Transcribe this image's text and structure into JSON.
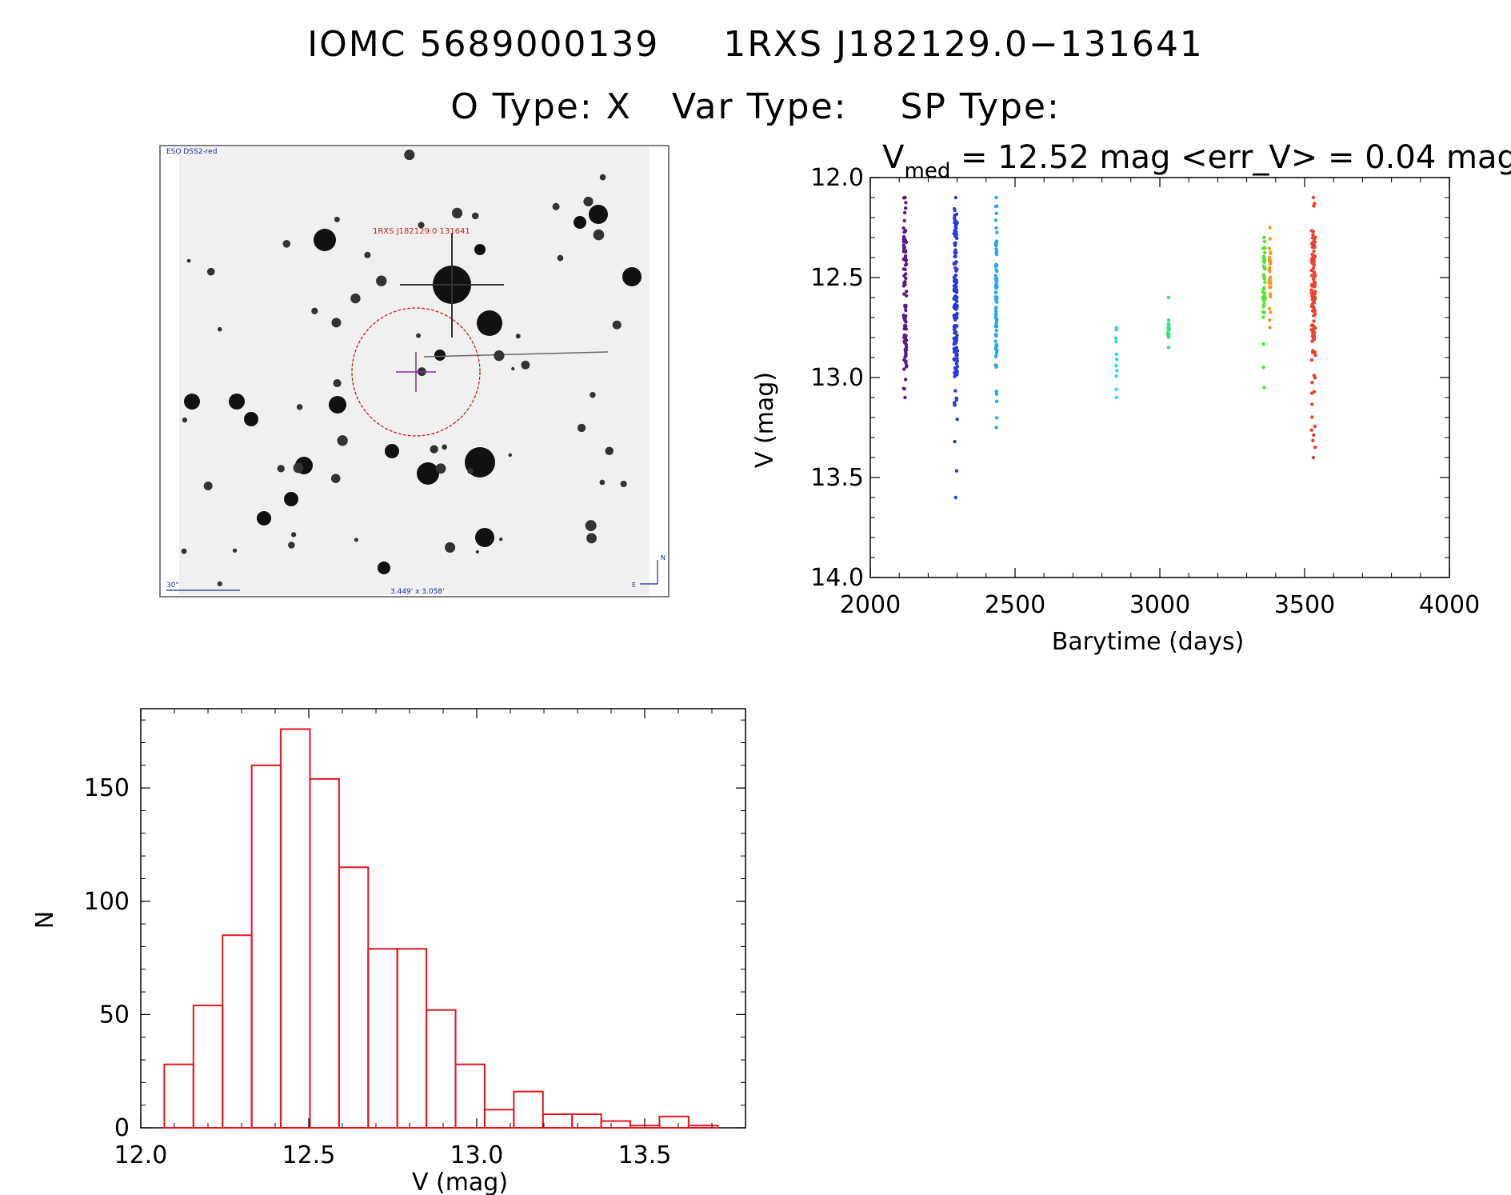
{
  "header": {
    "star_id": "IOMC 5689000139",
    "alt_id": "1RXS J182129.0−131641",
    "o_type_label": "O Type:",
    "o_type_value": "X",
    "var_type_label": "Var Type:",
    "var_type_value": "",
    "sp_type_label": "SP Type:",
    "sp_type_value": ""
  },
  "finder_chart": {
    "survey_label": "ESO DSS2-red",
    "target_label": "1RXS J182129.0 131641",
    "scale_label": "30\"",
    "fov_label": "3.449' x 3.058'",
    "north_label": "N",
    "east_label": "E",
    "colors": {
      "circle": "#c8202a",
      "crosshair": "#8a2a9a",
      "label": "#c8202a",
      "annot": "#1a2a9a"
    }
  },
  "chart_data": [
    {
      "type": "scatter",
      "title_prefix": "V",
      "title_subscript": "med",
      "title_rest": " = 12.52 mag <err_V> = 0.04 mag",
      "xlabel": "Barytime (days)",
      "ylabel": "V (mag)",
      "xlim": [
        2000,
        4000
      ],
      "ylim": [
        14.0,
        12.0
      ],
      "x_ticks": [
        2000,
        2500,
        3000,
        3500,
        4000
      ],
      "x_tick_labels": [
        "2000",
        "2500",
        "3000",
        "3500",
        "4000"
      ],
      "y_ticks": [
        12.0,
        12.5,
        13.0,
        13.5,
        14.0
      ],
      "y_tick_labels": [
        "12.0",
        "12.5",
        "13.0",
        "13.5",
        "14.0"
      ],
      "series": [
        {
          "name": "season1",
          "color": "#5a1a8a",
          "x_center": 2120,
          "x_spread": 10,
          "y_min": 12.1,
          "y_max": 13.1,
          "y_core": [
            12.25,
            12.95
          ],
          "count": 90
        },
        {
          "name": "season2",
          "color": "#2a3ad8",
          "x_center": 2295,
          "x_spread": 12,
          "y_min": 12.1,
          "y_max": 13.6,
          "y_core": [
            12.2,
            13.0
          ],
          "count": 150
        },
        {
          "name": "season3",
          "color": "#2aa8ea",
          "x_center": 2435,
          "x_spread": 5,
          "y_min": 12.1,
          "y_max": 13.25,
          "y_core": [
            12.3,
            12.9
          ],
          "count": 90
        },
        {
          "name": "season4",
          "color": "#2ad8e8",
          "x_center": 2850,
          "x_spread": 4,
          "y_min": 12.75,
          "y_max": 13.1,
          "y_core": [
            12.75,
            13.0
          ],
          "count": 10
        },
        {
          "name": "season5",
          "color": "#2ae87a",
          "x_center": 3030,
          "x_spread": 5,
          "y_min": 12.6,
          "y_max": 12.85,
          "y_core": [
            12.7,
            12.8
          ],
          "count": 12
        },
        {
          "name": "season6",
          "color": "#4ae82a",
          "x_center": 3360,
          "x_spread": 7,
          "y_min": 12.3,
          "y_max": 13.05,
          "y_core": [
            12.35,
            12.7
          ],
          "count": 40
        },
        {
          "name": "season7",
          "color": "#f0982a",
          "x_center": 3380,
          "x_spread": 5,
          "y_min": 12.25,
          "y_max": 12.75,
          "y_core": [
            12.35,
            12.6
          ],
          "count": 30
        },
        {
          "name": "season8",
          "color": "#f0402a",
          "x_center": 3530,
          "x_spread": 14,
          "y_min": 12.1,
          "y_max": 13.4,
          "y_core": [
            12.3,
            12.9
          ],
          "count": 110
        }
      ]
    },
    {
      "type": "bar",
      "xlabel": "V (mag)",
      "ylabel": "N",
      "xlim": [
        12.0,
        13.8
      ],
      "ylim": [
        0,
        185
      ],
      "x_ticks": [
        12.0,
        12.5,
        13.0,
        13.5
      ],
      "x_tick_labels": [
        "12.0",
        "12.5",
        "13.0",
        "13.5"
      ],
      "y_ticks": [
        0,
        50,
        100,
        150
      ],
      "y_tick_labels": [
        "0",
        "50",
        "100",
        "150"
      ],
      "bin_start": 12.07,
      "bin_width": 0.0867,
      "values": [
        28,
        54,
        85,
        160,
        176,
        154,
        115,
        79,
        79,
        52,
        28,
        8,
        16,
        6,
        6,
        3,
        1,
        5,
        1
      ],
      "bar_color": "#e8141e"
    }
  ]
}
